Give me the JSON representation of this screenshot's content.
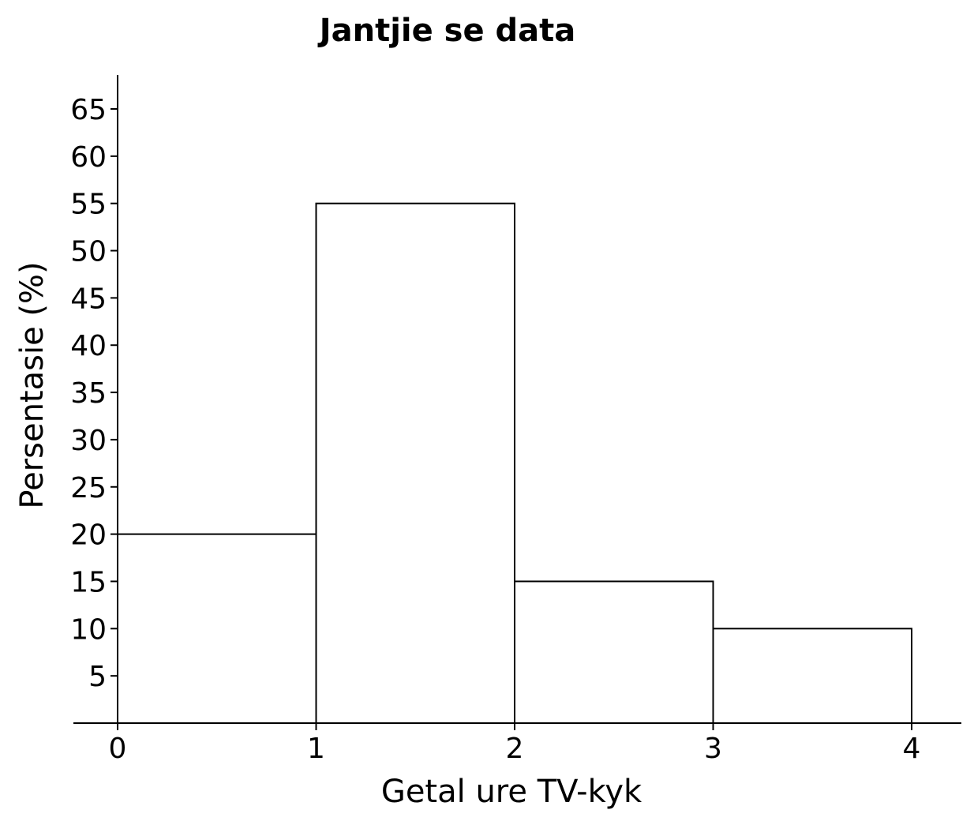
{
  "chart_data": {
    "type": "bar",
    "title": "Jantjie se data",
    "xlabel": "Getal ure TV-kyk",
    "ylabel": "Persentasie (%)",
    "x_ticks": [
      "0",
      "1",
      "2",
      "3",
      "4"
    ],
    "y_ticks": [
      "5",
      "10",
      "15",
      "20",
      "25",
      "30",
      "35",
      "40",
      "45",
      "50",
      "55",
      "60",
      "65"
    ],
    "bins": [
      {
        "from": 0,
        "to": 1,
        "value": 20
      },
      {
        "from": 1,
        "to": 2,
        "value": 55
      },
      {
        "from": 2,
        "to": 3,
        "value": 15
      },
      {
        "from": 3,
        "to": 4,
        "value": 10
      }
    ],
    "xlim": [
      0,
      4
    ],
    "ylim": [
      0,
      65
    ],
    "grid": false,
    "legend": "none",
    "colors": {
      "bar_fill": "#ffffff",
      "bar_stroke": "#000000",
      "axis": "#000000"
    }
  }
}
